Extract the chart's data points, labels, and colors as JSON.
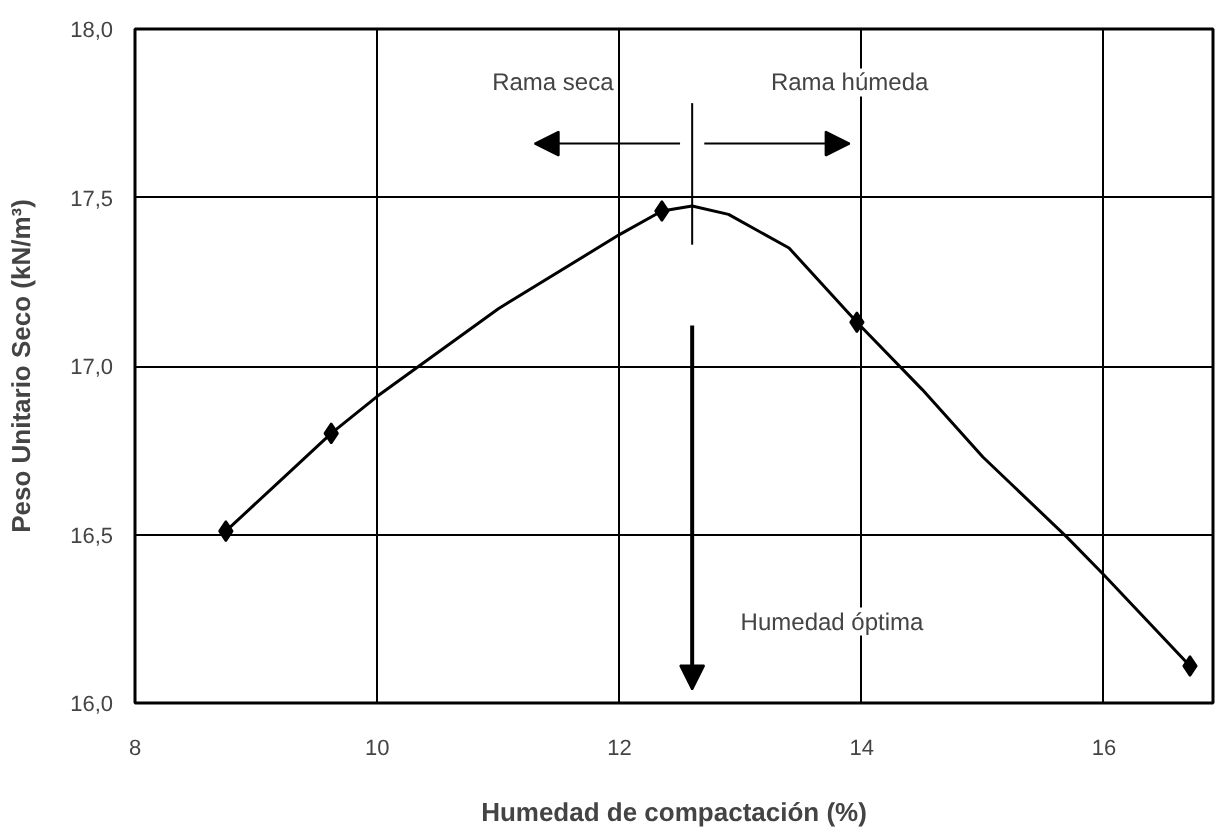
{
  "chart_data": {
    "type": "line",
    "xlabel": "Humedad de compactación (%)",
    "ylabel": "Peso Unitario Seco (kN/m³)",
    "xlim": [
      8,
      16.9
    ],
    "ylim": [
      16.0,
      18.0
    ],
    "xticks": [
      8,
      10,
      12,
      14,
      16
    ],
    "yticks": [
      {
        "value": 16.0,
        "label": "16,0"
      },
      {
        "value": 16.5,
        "label": "16,5"
      },
      {
        "value": 17.0,
        "label": "17,0"
      },
      {
        "value": 17.5,
        "label": "17,5"
      },
      {
        "value": 18.0,
        "label": "18,0"
      }
    ],
    "grid": true,
    "line_style": "solid",
    "ref_lines": [
      {
        "axis": "x",
        "value": 12.6
      }
    ],
    "series": [
      {
        "type": "scatter",
        "marker": "diamond",
        "color": "#000000",
        "x": [
          8.75,
          9.62,
          12.35,
          13.96,
          16.71
        ],
        "values": [
          16.51,
          16.8,
          17.46,
          17.13,
          16.11
        ]
      },
      {
        "marker": "none",
        "color": "#000000",
        "x": [
          8.75,
          9.2,
          9.62,
          10,
          11,
          12,
          12.35,
          12.6,
          12.9,
          13.4,
          13.96,
          14.5,
          15,
          15.7,
          16,
          16.71
        ],
        "values": [
          16.51,
          16.66,
          16.8,
          16.91,
          17.17,
          17.39,
          17.46,
          17.475,
          17.45,
          17.35,
          17.13,
          16.93,
          16.73,
          16.49,
          16.38,
          16.11
        ]
      }
    ],
    "annotations": [
      "Rama seca",
      "Rama húmeda",
      "Humedad óptima"
    ]
  }
}
